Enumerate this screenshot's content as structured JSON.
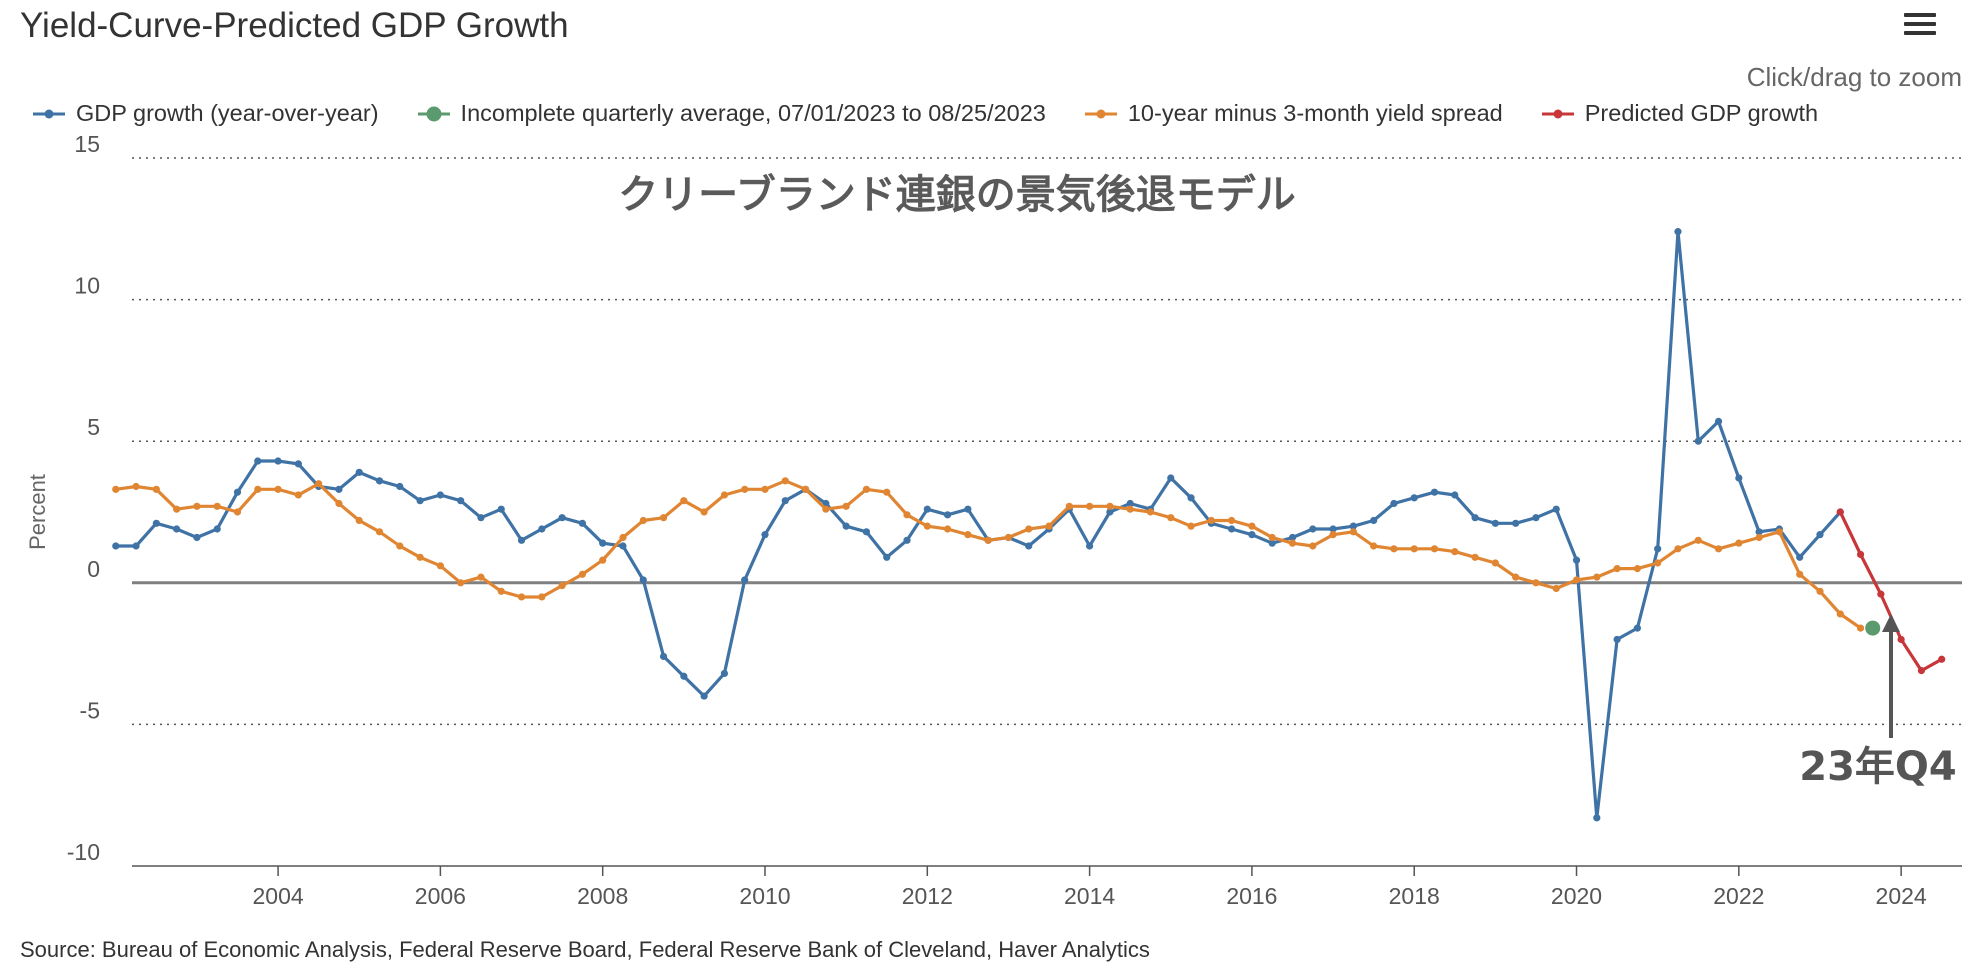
{
  "page": {
    "title": "Yield-Curve-Predicted GDP Growth",
    "zoom_hint": "Click/drag to zoom",
    "source": "Source: Bureau of Economic Analysis, Federal Reserve Board, Federal Reserve Bank of Cleveland, Haver Analytics",
    "menu_icon": "hamburger-menu-icon"
  },
  "colors": {
    "gdp": "#3f72a5",
    "incomplete": "#5a9a6e",
    "spread": "#e08632",
    "predicted": "#c7373a",
    "zero_line": "#808080",
    "annotation": "#555555"
  },
  "chart_data": {
    "type": "line",
    "title": "クリーブランド連銀の景気後退モデル",
    "ylabel": "Percent",
    "xlabel": "",
    "xlim": [
      2002.2,
      2024.75
    ],
    "ylim": [
      -10,
      15
    ],
    "yticks": [
      15,
      10,
      5,
      0,
      -5,
      -10
    ],
    "ytick_labels": [
      "15",
      "10",
      "5",
      "0",
      "-5",
      "-10"
    ],
    "xticks": [
      2004,
      2006,
      2008,
      2010,
      2012,
      2014,
      2016,
      2018,
      2020,
      2022,
      2024
    ],
    "xtick_labels": [
      "2004",
      "2006",
      "2008",
      "2010",
      "2012",
      "2014",
      "2016",
      "2018",
      "2020",
      "2022",
      "2024"
    ],
    "grid": "horizontal dotted",
    "legend_position": "top",
    "annotation": {
      "text": "23年Q4",
      "x": 2023.875,
      "y": -1.1
    },
    "series": [
      {
        "name": "GDP growth (year-over-year)",
        "color": "#3f72a5",
        "x": [
          2002.0,
          2002.25,
          2002.5,
          2002.75,
          2003.0,
          2003.25,
          2003.5,
          2003.75,
          2004.0,
          2004.25,
          2004.5,
          2004.75,
          2005.0,
          2005.25,
          2005.5,
          2005.75,
          2006.0,
          2006.25,
          2006.5,
          2006.75,
          2007.0,
          2007.25,
          2007.5,
          2007.75,
          2008.0,
          2008.25,
          2008.5,
          2008.75,
          2009.0,
          2009.25,
          2009.5,
          2009.75,
          2010.0,
          2010.25,
          2010.5,
          2010.75,
          2011.0,
          2011.25,
          2011.5,
          2011.75,
          2012.0,
          2012.25,
          2012.5,
          2012.75,
          2013.0,
          2013.25,
          2013.5,
          2013.75,
          2014.0,
          2014.25,
          2014.5,
          2014.75,
          2015.0,
          2015.25,
          2015.5,
          2015.75,
          2016.0,
          2016.25,
          2016.5,
          2016.75,
          2017.0,
          2017.25,
          2017.5,
          2017.75,
          2018.0,
          2018.25,
          2018.5,
          2018.75,
          2019.0,
          2019.25,
          2019.5,
          2019.75,
          2020.0,
          2020.25,
          2020.5,
          2020.75,
          2021.0,
          2021.25,
          2021.5,
          2021.75,
          2022.0,
          2022.25,
          2022.5,
          2022.75,
          2023.0,
          2023.25
        ],
        "values": [
          1.3,
          1.3,
          2.1,
          1.9,
          1.6,
          1.9,
          3.2,
          4.3,
          4.3,
          4.2,
          3.4,
          3.3,
          3.9,
          3.6,
          3.4,
          2.9,
          3.1,
          2.9,
          2.3,
          2.6,
          1.5,
          1.9,
          2.3,
          2.1,
          1.4,
          1.3,
          0.1,
          -2.6,
          -3.3,
          -4.0,
          -3.2,
          0.1,
          1.7,
          2.9,
          3.3,
          2.8,
          2.0,
          1.8,
          0.9,
          1.5,
          2.6,
          2.4,
          2.6,
          1.5,
          1.6,
          1.3,
          1.9,
          2.6,
          1.3,
          2.5,
          2.8,
          2.6,
          3.7,
          3.0,
          2.1,
          1.9,
          1.7,
          1.4,
          1.6,
          1.9,
          1.9,
          2.0,
          2.2,
          2.8,
          3.0,
          3.2,
          3.1,
          2.3,
          2.1,
          2.1,
          2.3,
          2.6,
          0.8,
          -8.3,
          -2.0,
          -1.6,
          1.2,
          12.4,
          5.0,
          5.7,
          3.7,
          1.8,
          1.9,
          0.9,
          1.7,
          2.5
        ]
      },
      {
        "name": "Incomplete quarterly average, 07/01/2023 to 08/25/2023",
        "color": "#5a9a6e",
        "x": [
          2023.65
        ],
        "values": [
          -1.6
        ]
      },
      {
        "name": "10-year minus 3-month yield spread",
        "color": "#e08632",
        "x": [
          2002.0,
          2002.25,
          2002.5,
          2002.75,
          2003.0,
          2003.25,
          2003.5,
          2003.75,
          2004.0,
          2004.25,
          2004.5,
          2004.75,
          2005.0,
          2005.25,
          2005.5,
          2005.75,
          2006.0,
          2006.25,
          2006.5,
          2006.75,
          2007.0,
          2007.25,
          2007.5,
          2007.75,
          2008.0,
          2008.25,
          2008.5,
          2008.75,
          2009.0,
          2009.25,
          2009.5,
          2009.75,
          2010.0,
          2010.25,
          2010.5,
          2010.75,
          2011.0,
          2011.25,
          2011.5,
          2011.75,
          2012.0,
          2012.25,
          2012.5,
          2012.75,
          2013.0,
          2013.25,
          2013.5,
          2013.75,
          2014.0,
          2014.25,
          2014.5,
          2014.75,
          2015.0,
          2015.25,
          2015.5,
          2015.75,
          2016.0,
          2016.25,
          2016.5,
          2016.75,
          2017.0,
          2017.25,
          2017.5,
          2017.75,
          2018.0,
          2018.25,
          2018.5,
          2018.75,
          2019.0,
          2019.25,
          2019.5,
          2019.75,
          2020.0,
          2020.25,
          2020.5,
          2020.75,
          2021.0,
          2021.25,
          2021.5,
          2021.75,
          2022.0,
          2022.25,
          2022.5,
          2022.75,
          2023.0,
          2023.25,
          2023.5
        ],
        "values": [
          3.3,
          3.4,
          3.3,
          2.6,
          2.7,
          2.7,
          2.5,
          3.3,
          3.3,
          3.1,
          3.5,
          2.8,
          2.2,
          1.8,
          1.3,
          0.9,
          0.6,
          0.0,
          0.2,
          -0.3,
          -0.5,
          -0.5,
          -0.1,
          0.3,
          0.8,
          1.6,
          2.2,
          2.3,
          2.9,
          2.5,
          3.1,
          3.3,
          3.3,
          3.6,
          3.3,
          2.6,
          2.7,
          3.3,
          3.2,
          2.4,
          2.0,
          1.9,
          1.7,
          1.5,
          1.6,
          1.9,
          2.0,
          2.7,
          2.7,
          2.7,
          2.6,
          2.5,
          2.3,
          2.0,
          2.2,
          2.2,
          2.0,
          1.6,
          1.4,
          1.3,
          1.7,
          1.8,
          1.3,
          1.2,
          1.2,
          1.2,
          1.1,
          0.9,
          0.7,
          0.2,
          0.0,
          -0.2,
          0.1,
          0.2,
          0.5,
          0.5,
          0.7,
          1.2,
          1.5,
          1.2,
          1.4,
          1.6,
          1.8,
          0.3,
          -0.3,
          -1.1,
          -1.6
        ]
      },
      {
        "name": "Predicted GDP growth",
        "color": "#c7373a",
        "x": [
          2023.25,
          2023.5,
          2023.75,
          2024.0,
          2024.25,
          2024.5
        ],
        "values": [
          2.5,
          1.0,
          -0.4,
          -2.0,
          -3.1,
          -2.7
        ]
      }
    ]
  }
}
